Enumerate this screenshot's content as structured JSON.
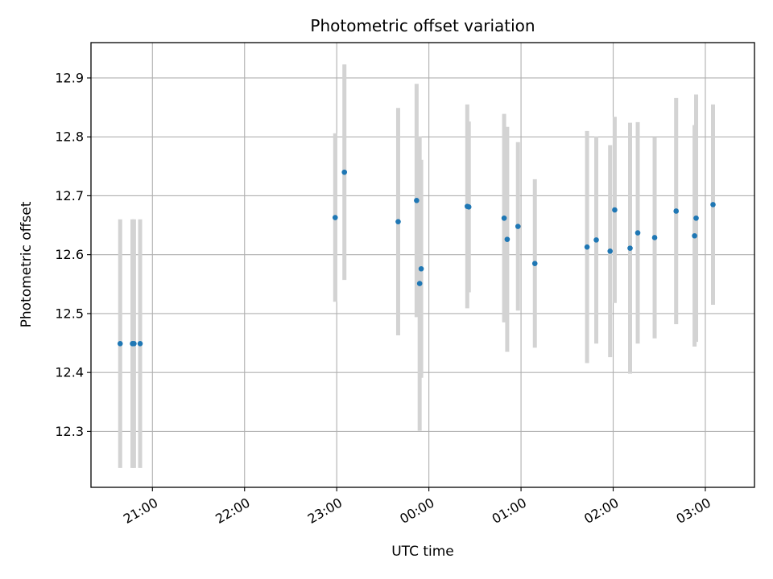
{
  "chart_data": {
    "type": "scatter",
    "title": "Photometric offset variation",
    "xlabel": "UTC time",
    "ylabel": "Photometric offset",
    "grid": true,
    "xlim_minutes": [
      1220,
      1652
    ],
    "ylim": [
      12.205,
      12.96
    ],
    "x_ticks": [
      {
        "label": "21:00",
        "minutes": 1260
      },
      {
        "label": "22:00",
        "minutes": 1320
      },
      {
        "label": "23:00",
        "minutes": 1380
      },
      {
        "label": "00:00",
        "minutes": 1440
      },
      {
        "label": "01:00",
        "minutes": 1500
      },
      {
        "label": "02:00",
        "minutes": 1560
      },
      {
        "label": "03:00",
        "minutes": 1620
      }
    ],
    "y_ticks": [
      "12.3",
      "12.4",
      "12.5",
      "12.6",
      "12.7",
      "12.8",
      "12.9"
    ],
    "marker_color": "#1f77b4",
    "errorbar_color": "#d3d3d3",
    "points": [
      {
        "time": "20:39",
        "value": 12.449,
        "err": 0.211
      },
      {
        "time": "20:47",
        "value": 12.449,
        "err": 0.211
      },
      {
        "time": "20:48",
        "value": 12.449,
        "err": 0.211
      },
      {
        "time": "20:52",
        "value": 12.449,
        "err": 0.211
      },
      {
        "time": "22:59",
        "value": 12.663,
        "err": 0.143
      },
      {
        "time": "23:05",
        "value": 12.74,
        "err": 0.183
      },
      {
        "time": "23:40",
        "value": 12.656,
        "err": 0.193
      },
      {
        "time": "23:52",
        "value": 12.692,
        "err": 0.198
      },
      {
        "time": "23:54",
        "value": 12.551,
        "err": 0.25
      },
      {
        "time": "23:55",
        "value": 12.576,
        "err": 0.185
      },
      {
        "time": "00:25",
        "value": 12.682,
        "err": 0.173
      },
      {
        "time": "00:26",
        "value": 12.681,
        "err": 0.145
      },
      {
        "time": "00:49",
        "value": 12.662,
        "err": 0.177
      },
      {
        "time": "00:51",
        "value": 12.626,
        "err": 0.191
      },
      {
        "time": "00:58",
        "value": 12.648,
        "err": 0.143
      },
      {
        "time": "01:09",
        "value": 12.585,
        "err": 0.143
      },
      {
        "time": "01:43",
        "value": 12.613,
        "err": 0.197
      },
      {
        "time": "01:49",
        "value": 12.625,
        "err": 0.176
      },
      {
        "time": "01:58",
        "value": 12.606,
        "err": 0.18
      },
      {
        "time": "02:01",
        "value": 12.676,
        "err": 0.158
      },
      {
        "time": "02:11",
        "value": 12.611,
        "err": 0.213
      },
      {
        "time": "02:16",
        "value": 12.637,
        "err": 0.188
      },
      {
        "time": "02:27",
        "value": 12.629,
        "err": 0.171
      },
      {
        "time": "02:41",
        "value": 12.674,
        "err": 0.192
      },
      {
        "time": "02:53",
        "value": 12.632,
        "err": 0.188
      },
      {
        "time": "02:54",
        "value": 12.662,
        "err": 0.21
      },
      {
        "time": "03:05",
        "value": 12.685,
        "err": 0.17
      }
    ]
  }
}
